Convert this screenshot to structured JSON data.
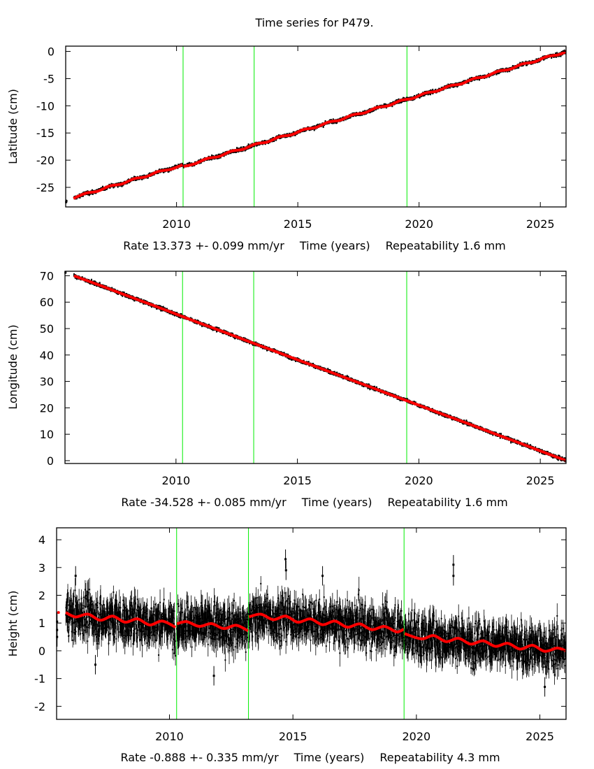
{
  "title": "Time series for P479.",
  "colors": {
    "observations": "#000000",
    "fit": "#ff0000",
    "event_markers": "#00ee00",
    "frame": "#000000"
  },
  "chart_data": [
    {
      "type": "line",
      "ylabel": "Latitude (cm)",
      "xlabel_parts": {
        "rate": "Rate 13.373 +- 0.099 mm/yr",
        "axis": "Time (years)",
        "repeatability": "Repeatability 1.6 mm"
      },
      "xlim": [
        2005.43,
        2026.06
      ],
      "ylim": [
        -28.6,
        0.97
      ],
      "xticks": [
        "2010",
        "2015",
        "2020",
        "2025"
      ],
      "yticks": [
        "0",
        "-5",
        "-10",
        "-15",
        "-20",
        "-25"
      ],
      "grid": false,
      "event_markers": [
        2010.27,
        2013.2,
        2019.5
      ],
      "fit_segments": [
        [
          [
            2005.75,
            -27.05
          ],
          [
            2006.25,
            -26.08
          ],
          [
            2006.75,
            -25.71
          ],
          [
            2007.25,
            -24.74
          ],
          [
            2007.75,
            -24.38
          ],
          [
            2008.25,
            -23.41
          ],
          [
            2008.75,
            -23.04
          ],
          [
            2009.25,
            -22.07
          ],
          [
            2009.75,
            -21.7
          ],
          [
            2010.25,
            -20.85
          ]
        ],
        [
          [
            2010.29,
            -21.15
          ],
          [
            2010.75,
            -20.67
          ],
          [
            2011.25,
            -19.7
          ],
          [
            2011.75,
            -19.33
          ],
          [
            2012.25,
            -18.36
          ],
          [
            2012.75,
            -17.99
          ],
          [
            2013.25,
            -17.02
          ],
          [
            2013.75,
            -16.65
          ],
          [
            2014.25,
            -15.69
          ],
          [
            2014.75,
            -15.32
          ],
          [
            2015.25,
            -14.35
          ],
          [
            2015.75,
            -13.98
          ],
          [
            2016.25,
            -13.01
          ],
          [
            2016.75,
            -12.64
          ],
          [
            2017.25,
            -11.67
          ],
          [
            2017.75,
            -11.31
          ],
          [
            2018.25,
            -10.34
          ],
          [
            2018.75,
            -9.97
          ],
          [
            2019.25,
            -9.0
          ],
          [
            2019.75,
            -8.63
          ],
          [
            2020.25,
            -7.66
          ],
          [
            2020.75,
            -7.29
          ],
          [
            2021.25,
            -6.33
          ],
          [
            2021.75,
            -5.96
          ],
          [
            2022.25,
            -4.99
          ],
          [
            2022.75,
            -4.62
          ],
          [
            2023.25,
            -3.65
          ],
          [
            2023.75,
            -3.28
          ],
          [
            2024.25,
            -2.31
          ],
          [
            2024.75,
            -1.94
          ],
          [
            2025.25,
            -0.98
          ],
          [
            2025.75,
            -0.61
          ],
          [
            2026.05,
            -0.05
          ]
        ]
      ],
      "outliers": [
        [
          2005.45,
          -27.7
        ],
        [
          2005.46,
          -27.5
        ]
      ]
    },
    {
      "type": "line",
      "ylabel": "Longitude (cm)",
      "xlabel_parts": {
        "rate": "Rate -34.528 +- 0.085 mm/yr",
        "axis": "Time (years)",
        "repeatability": "Repeatability 1.6 mm"
      },
      "xlim": [
        2005.43,
        2026.06
      ],
      "ylim": [
        -1.07,
        71.7
      ],
      "xticks": [
        "2010",
        "2015",
        "2020",
        "2025"
      ],
      "yticks": [
        "0",
        "10",
        "20",
        "30",
        "40",
        "50",
        "60",
        "70"
      ],
      "grid": false,
      "event_markers": [
        2010.27,
        2013.2,
        2019.5
      ],
      "fit_segments": [
        [
          [
            2005.8,
            70.0
          ],
          [
            2006,
            69.3
          ],
          [
            2007,
            65.9
          ],
          [
            2008,
            62.4
          ],
          [
            2009,
            59.0
          ],
          [
            2010,
            55.5
          ],
          [
            2011,
            52.0
          ],
          [
            2012,
            48.6
          ],
          [
            2013,
            45.1
          ],
          [
            2014,
            41.7
          ],
          [
            2015,
            38.2
          ],
          [
            2016,
            34.8
          ],
          [
            2017,
            31.3
          ],
          [
            2018,
            27.9
          ],
          [
            2019,
            24.4
          ],
          [
            2020,
            21.0
          ],
          [
            2021,
            17.5
          ],
          [
            2022,
            14.1
          ],
          [
            2023,
            10.6
          ],
          [
            2024,
            7.2
          ],
          [
            2025,
            3.7
          ],
          [
            2026.05,
            0.1
          ]
        ]
      ],
      "outliers": [
        [
          2005.45,
          71.2
        ]
      ]
    },
    {
      "type": "line",
      "ylabel": "Height (cm)",
      "xlabel_parts": {
        "rate": "Rate -0.888 +- 0.335 mm/yr",
        "axis": "Time (years)",
        "repeatability": "Repeatability 4.3 mm"
      },
      "xlim": [
        2005.43,
        2026.06
      ],
      "ylim": [
        -2.47,
        4.43
      ],
      "xticks": [
        "2010",
        "2015",
        "2020",
        "2025"
      ],
      "yticks": [
        "-2",
        "-1",
        "0",
        "1",
        "2",
        "3",
        "4"
      ],
      "grid": false,
      "event_markers": [
        2010.29,
        2013.2,
        2019.5
      ],
      "fit_segments": [
        [
          [
            2005.45,
            1.38
          ]
        ],
        [
          [
            2005.8,
            1.38
          ],
          [
            2006.2,
            1.22
          ],
          [
            2006.7,
            1.32
          ],
          [
            2007.2,
            1.1
          ],
          [
            2007.7,
            1.25
          ],
          [
            2008.2,
            1.03
          ],
          [
            2008.7,
            1.15
          ],
          [
            2009.2,
            0.93
          ],
          [
            2009.7,
            1.07
          ],
          [
            2010.25,
            0.85
          ]
        ],
        [
          [
            2010.3,
            0.97
          ],
          [
            2010.7,
            1.05
          ],
          [
            2011.2,
            0.88
          ],
          [
            2011.7,
            0.98
          ],
          [
            2012.2,
            0.8
          ],
          [
            2012.7,
            0.92
          ],
          [
            2013.18,
            0.72
          ]
        ],
        [
          [
            2013.22,
            1.22
          ],
          [
            2013.7,
            1.32
          ],
          [
            2014.2,
            1.12
          ],
          [
            2014.7,
            1.25
          ],
          [
            2015.2,
            1.03
          ],
          [
            2015.7,
            1.15
          ],
          [
            2016.2,
            0.94
          ],
          [
            2016.7,
            1.07
          ],
          [
            2017.2,
            0.85
          ],
          [
            2017.7,
            0.97
          ],
          [
            2018.2,
            0.76
          ],
          [
            2018.7,
            0.88
          ],
          [
            2019.2,
            0.68
          ],
          [
            2019.48,
            0.78
          ]
        ],
        [
          [
            2019.52,
            0.62
          ],
          [
            2020.2,
            0.43
          ],
          [
            2020.7,
            0.55
          ],
          [
            2021.2,
            0.33
          ],
          [
            2021.7,
            0.45
          ],
          [
            2022.2,
            0.24
          ],
          [
            2022.7,
            0.36
          ],
          [
            2023.2,
            0.16
          ],
          [
            2023.7,
            0.27
          ],
          [
            2024.2,
            0.06
          ],
          [
            2024.7,
            0.2
          ],
          [
            2025.2,
            -0.02
          ],
          [
            2025.7,
            0.1
          ],
          [
            2026.05,
            0.0
          ]
        ]
      ],
      "outliers": [
        [
          2005.45,
          0.75
        ],
        [
          2005.45,
          0.5
        ],
        [
          2005.45,
          1.05
        ],
        [
          2007.0,
          -0.5
        ],
        [
          2011.8,
          -0.9
        ],
        [
          2014.7,
          3.3
        ],
        [
          2014.72,
          2.9
        ],
        [
          2021.5,
          3.1
        ],
        [
          2021.5,
          2.7
        ],
        [
          2006.2,
          2.7
        ],
        [
          2016.2,
          2.7
        ],
        [
          2025.2,
          -1.3
        ]
      ]
    }
  ]
}
